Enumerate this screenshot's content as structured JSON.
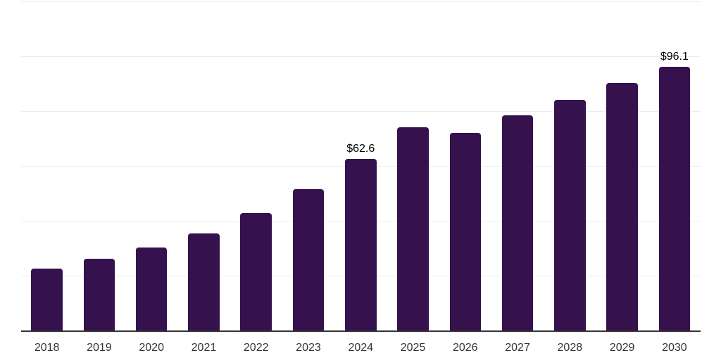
{
  "chart_data": {
    "type": "bar",
    "title": "",
    "xlabel": "",
    "ylabel": "",
    "categories": [
      "2018",
      "2019",
      "2020",
      "2021",
      "2022",
      "2023",
      "2024",
      "2025",
      "2026",
      "2027",
      "2028",
      "2029",
      "2030"
    ],
    "values": [
      22.6,
      26.1,
      30.2,
      35.5,
      42.7,
      51.5,
      62.6,
      74.2,
      72.0,
      78.5,
      84.2,
      90.3,
      96.1
    ],
    "data_labels": [
      null,
      null,
      null,
      null,
      null,
      null,
      "$62.6",
      null,
      null,
      null,
      null,
      null,
      "$96.1"
    ],
    "ylim": [
      0,
      120
    ],
    "gridline_step": 20,
    "grid": true,
    "legend": false,
    "y_axis_labels_visible": false,
    "colors": {
      "bar": "#35114E",
      "gridline": "#ececec",
      "axis_line": "#333333",
      "tick_label": "#333333",
      "data_label": "#000000",
      "background": "#ffffff"
    }
  }
}
